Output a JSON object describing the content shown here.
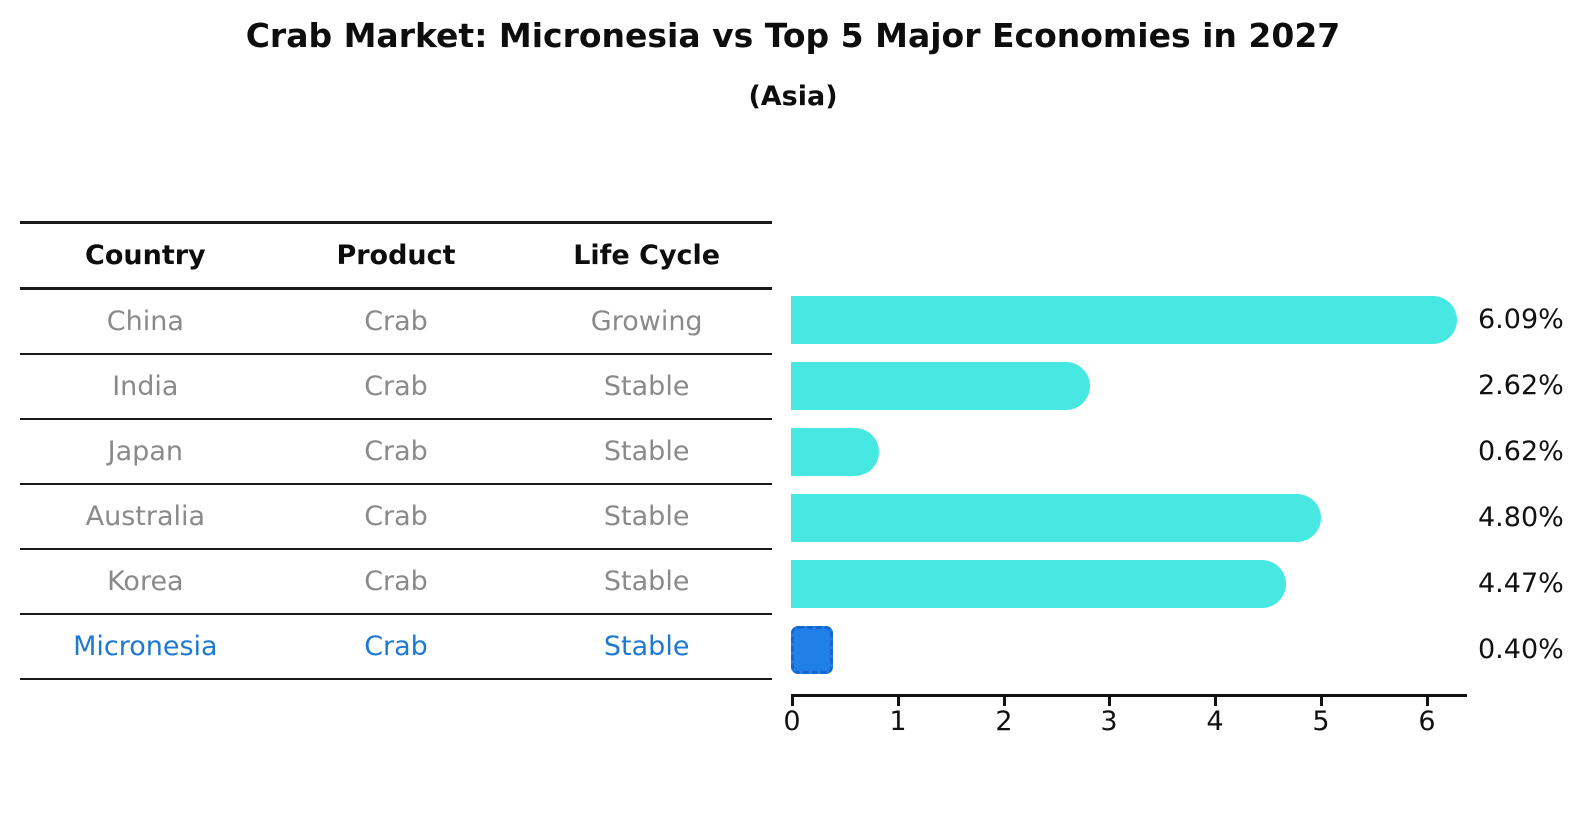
{
  "title": "Crab Market: Micronesia vs Top 5 Major Economies in 2027",
  "subtitle": "(Asia)",
  "table": {
    "headers": [
      "Country",
      "Product",
      "Life Cycle"
    ],
    "rows": [
      {
        "country": "China",
        "product": "Crab",
        "life_cycle": "Growing",
        "highlight": false
      },
      {
        "country": "India",
        "product": "Crab",
        "life_cycle": "Stable",
        "highlight": false
      },
      {
        "country": "Japan",
        "product": "Crab",
        "life_cycle": "Stable",
        "highlight": false
      },
      {
        "country": "Australia",
        "product": "Crab",
        "life_cycle": "Stable",
        "highlight": false
      },
      {
        "country": "Korea",
        "product": "Crab",
        "life_cycle": "Stable",
        "highlight": false
      },
      {
        "country": "Micronesia",
        "product": "Crab",
        "life_cycle": "Stable",
        "highlight": true
      }
    ]
  },
  "chart_data": {
    "type": "bar",
    "orientation": "horizontal",
    "title": "Crab Market: Micronesia vs Top 5 Major Economies in 2027",
    "subtitle": "(Asia)",
    "categories": [
      "China",
      "India",
      "Japan",
      "Australia",
      "Korea",
      "Micronesia"
    ],
    "values": [
      6.09,
      2.62,
      0.62,
      4.8,
      4.47,
      0.4
    ],
    "value_labels": [
      "6.09%",
      "2.62%",
      "0.62%",
      "4.80%",
      "4.47%",
      "0.40%"
    ],
    "x_ticks": [
      "0",
      "1",
      "2",
      "3",
      "4",
      "5",
      "6"
    ],
    "xlim": [
      0,
      6.4
    ],
    "xlabel": "",
    "ylabel": "",
    "grid": false,
    "legend": null,
    "highlight_index": 5,
    "bar_color": "#48e8e2",
    "highlight_bar_color": "#2080e8",
    "highlight_border_color": "#1766ce",
    "highlight_text_color": "#1f78d1"
  }
}
